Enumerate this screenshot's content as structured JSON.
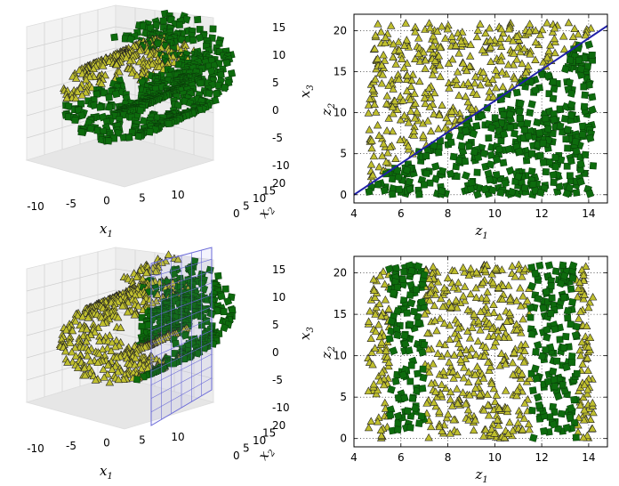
{
  "chart_data": [
    {
      "panel": "top-left",
      "type": "scatter3d",
      "description_visible": "swiss roll 3D scatter (triangles and squares)",
      "axes": {
        "x": {
          "label": "x1",
          "ticks": [
            "-10",
            "-5",
            "0",
            "5",
            "10"
          ]
        },
        "y": {
          "label": "x2",
          "ticks": [
            "0",
            "5",
            "10",
            "15",
            "20"
          ]
        },
        "z": {
          "label": "x3",
          "ticks": [
            "-10",
            "-5",
            "0",
            "5",
            "10",
            "15"
          ]
        }
      },
      "series": [
        {
          "marker": "triangle",
          "color": "#bfbf2e"
        },
        {
          "marker": "square",
          "color": "#0d6b0d"
        }
      ]
    },
    {
      "panel": "top-right",
      "type": "scatter",
      "xlim": [
        4,
        14.8
      ],
      "ylim": [
        -1,
        22
      ],
      "xticks": [
        "4",
        "6",
        "8",
        "10",
        "12",
        "14"
      ],
      "yticks": [
        "0",
        "5",
        "10",
        "15",
        "20"
      ],
      "xlabel": "z1",
      "ylabel": "z2",
      "boundary_line": {
        "x": [
          4,
          14.8
        ],
        "y": [
          0,
          20.6
        ],
        "color": "#1f1fa8"
      },
      "series": [
        {
          "marker": "triangle",
          "color": "#bfbf2e",
          "region": "above line"
        },
        {
          "marker": "square",
          "color": "#0d6b0d",
          "region": "below line"
        }
      ]
    },
    {
      "panel": "bottom-left",
      "type": "scatter3d",
      "axes": {
        "x": {
          "label": "x1",
          "ticks": [
            "-10",
            "-5",
            "0",
            "5",
            "10"
          ]
        },
        "y": {
          "label": "x2",
          "ticks": [
            "0",
            "5",
            "10",
            "15",
            "20"
          ]
        },
        "z": {
          "label": "x3",
          "ticks": [
            "-10",
            "-5",
            "0",
            "5",
            "10",
            "15"
          ]
        }
      },
      "plane_x1": 5,
      "series": [
        {
          "marker": "triangle",
          "color": "#bfbf2e",
          "region": "x1 < 5"
        },
        {
          "marker": "square",
          "color": "#0d6b0d",
          "region": "x1 > 5"
        }
      ]
    },
    {
      "panel": "bottom-right",
      "type": "scatter",
      "xlim": [
        4,
        14.8
      ],
      "ylim": [
        -1,
        22
      ],
      "xticks": [
        "4",
        "6",
        "8",
        "10",
        "12",
        "14"
      ],
      "yticks": [
        "0",
        "5",
        "10",
        "15",
        "20"
      ],
      "xlabel": "z1",
      "ylabel": "z2",
      "bands_square_x": [
        [
          5.5,
          7
        ],
        [
          11.5,
          13.5
        ]
      ],
      "series": [
        {
          "marker": "triangle",
          "color": "#bfbf2e"
        },
        {
          "marker": "square",
          "color": "#0d6b0d"
        }
      ]
    }
  ],
  "labels": {
    "z1": "z",
    "z1_sub": "1",
    "z2": "z",
    "z2_sub": "2",
    "x1": "x",
    "x1_sub": "1",
    "x2": "x",
    "x2_sub": "2",
    "x3": "x",
    "x3_sub": "3"
  }
}
